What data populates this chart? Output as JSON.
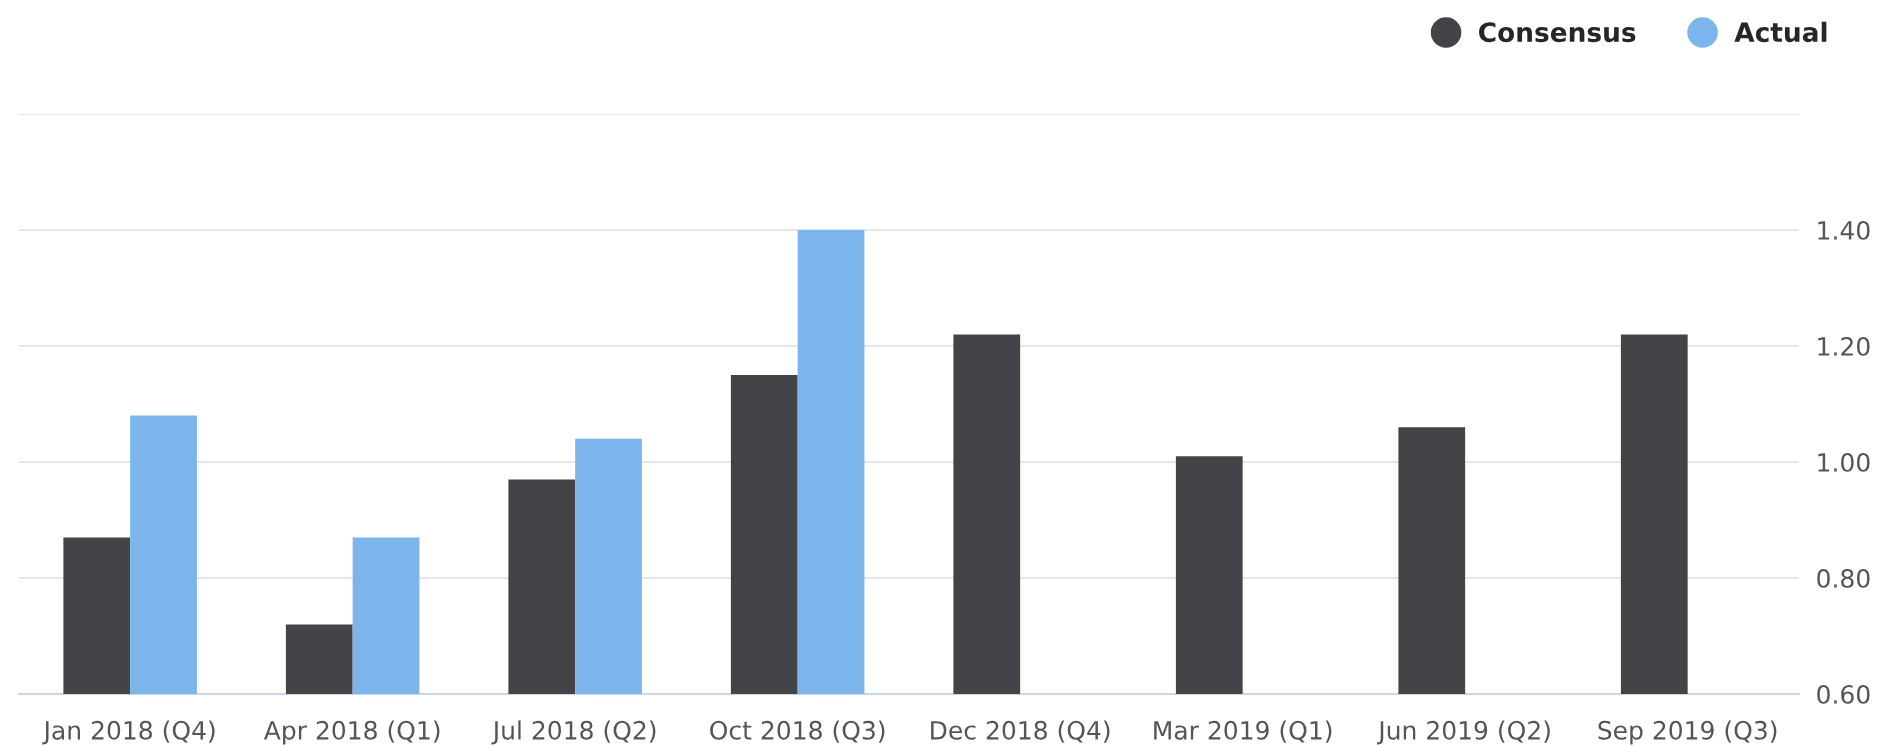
{
  "chart_data": {
    "type": "bar",
    "categories": [
      "Jan 2018 (Q4)",
      "Apr 2018 (Q1)",
      "Jul 2018 (Q2)",
      "Oct 2018 (Q3)",
      "Dec 2018 (Q4)",
      "Mar 2019 (Q1)",
      "Jun 2019 (Q2)",
      "Sep 2019 (Q3)"
    ],
    "series": [
      {
        "name": "Consensus",
        "color": "#434348",
        "values": [
          0.87,
          0.72,
          0.97,
          1.15,
          1.22,
          1.01,
          1.06,
          1.22
        ]
      },
      {
        "name": "Actual",
        "color": "#7cb5ec",
        "values": [
          1.08,
          0.87,
          1.04,
          1.4,
          null,
          null,
          null,
          null
        ]
      }
    ],
    "ylim": [
      0.6,
      1.6
    ],
    "yticks": [
      {
        "value": 0.6,
        "label": "0.60"
      },
      {
        "value": 0.8,
        "label": "0.80"
      },
      {
        "value": 1.0,
        "label": "1.00"
      },
      {
        "value": 1.2,
        "label": "1.20"
      },
      {
        "value": 1.4,
        "label": "1.40"
      },
      {
        "value": 1.6,
        "label": null
      }
    ],
    "grid": "y",
    "legend": "top right"
  }
}
